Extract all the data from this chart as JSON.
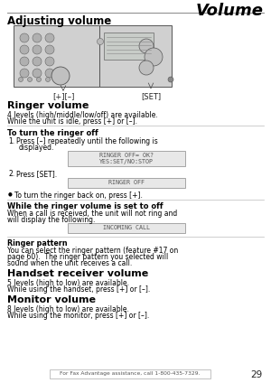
{
  "page_width": 3.0,
  "page_height": 4.24,
  "dpi": 100,
  "bg_color": "#ffffff",
  "header_title": "Volume",
  "section_main_title": "Adjusting volume",
  "section_ringer_title": "Ringer volume",
  "section_ringer_body1": "4 levels (high/middle/low/off) are available.",
  "section_ringer_body2": "While the unit is idle, press [+] or [–].",
  "subsection_ringer_off_title": "To turn the ringer off",
  "display_box1_line1": "RINGER OFF= OK?",
  "display_box1_line2": "YES:SET/NO:STOP",
  "display_box2": "RINGER OFF",
  "bullet_text": "To turn the ringer back on, press [+].",
  "subsection_ringer_off2_title": "While the ringer volume is set to off",
  "ringer_off2_body1": "When a call is received, the unit will not ring and",
  "ringer_off2_body2": "will display the following.",
  "display_box3": "INCOMING CALL",
  "subsection_pattern_title": "Ringer pattern",
  "pattern_body1": "You can select the ringer pattern (feature #17 on",
  "pattern_body2": "page 60).  The ringer pattern you selected will",
  "pattern_body3": "sound when the unit receives a call.",
  "section_handset_title": "Handset receiver volume",
  "handset_body1": "5 levels (high to low) are available.",
  "handset_body2": "While using the handset, press [+] or [–].",
  "section_monitor_title": "Monitor volume",
  "monitor_body1": "8 levels (high to low) are available.",
  "monitor_body2": "While using the monitor, press [+] or [–].",
  "footer_text": "For Fax Advantage assistance, call 1-800-435-7329.",
  "footer_page": "29",
  "box_bg": "#e8e8e8",
  "box_border": "#999999",
  "display_font_color": "#555555",
  "phone_label_plus": "[+][–]",
  "phone_label_set": "[SET]"
}
